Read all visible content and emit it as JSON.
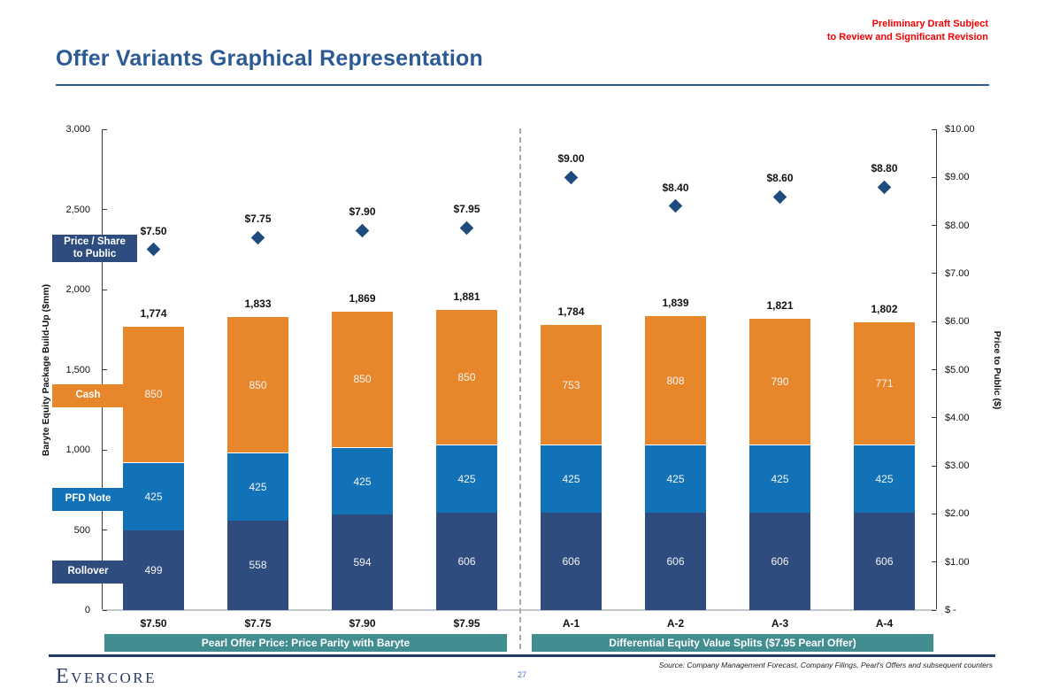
{
  "slide": {
    "disclaimer": [
      "Preliminary Draft Subject",
      "to Review and Significant Revision"
    ],
    "title": "Offer Variants Graphical Representation",
    "page_number": "27",
    "brand": "Evercore",
    "source": "Source: Company Management Forecast, Company Filings, Pearl's Offers and subsequent counters"
  },
  "colors": {
    "title_navy": "#2b5a94",
    "disclaimer_red": "#f40000",
    "footer_navy": "#1f3864",
    "teal": "#418d8f",
    "rollover_navy": "#2e4c7e",
    "pfd_blue": "#1272b7",
    "cash_orange": "#e8862c",
    "marker_navy": "#1f4c7e"
  },
  "chart_data": {
    "type": "bar",
    "stacked": true,
    "categories": [
      "$7.50",
      "$7.75",
      "$7.90",
      "$7.95",
      "A-1",
      "A-2",
      "A-3",
      "A-4"
    ],
    "series": [
      {
        "name": "Rollover",
        "color": "#2e4c7e",
        "values": [
          499,
          558,
          594,
          606,
          606,
          606,
          606,
          606
        ]
      },
      {
        "name": "PFD Note",
        "color": "#1272b7",
        "values": [
          425,
          425,
          425,
          425,
          425,
          425,
          425,
          425
        ]
      },
      {
        "name": "Cash",
        "color": "#e8862c",
        "values": [
          850,
          850,
          850,
          850,
          753,
          808,
          790,
          771
        ]
      }
    ],
    "totals": [
      1774,
      1833,
      1869,
      1881,
      1784,
      1839,
      1821,
      1802
    ],
    "total_labels": [
      "1,774",
      "1,833",
      "1,869",
      "1,881",
      "1,784",
      "1,839",
      "1,821",
      "1,802"
    ],
    "markers": {
      "name": "Price / Share to Public",
      "color": "#1f4c7e",
      "values": [
        7.5,
        7.75,
        7.9,
        7.95,
        9.0,
        8.4,
        8.6,
        8.8
      ],
      "labels": [
        "$7.50",
        "$7.75",
        "$7.90",
        "$7.95",
        "$9.00",
        "$8.40",
        "$8.60",
        "$8.80"
      ]
    },
    "left_axis": {
      "label": "Baryte Equity Package Build-Up ($mm)",
      "min": 0,
      "max": 3000,
      "ticks": [
        {
          "v": 3000,
          "t": "3,000"
        },
        {
          "v": 2500,
          "t": "2,500"
        },
        {
          "v": 2000,
          "t": "2,000"
        },
        {
          "v": 1500,
          "t": "1,500"
        },
        {
          "v": 1000,
          "t": "1,000"
        },
        {
          "v": 500,
          "t": "500"
        },
        {
          "v": 0,
          "t": "0"
        }
      ]
    },
    "right_axis": {
      "label": "Price to Public ($)",
      "min": 0,
      "max": 10,
      "ticks": [
        {
          "v": 10,
          "t": "$10.00"
        },
        {
          "v": 9,
          "t": "$9.00"
        },
        {
          "v": 8,
          "t": "$8.00"
        },
        {
          "v": 7,
          "t": "$7.00"
        },
        {
          "v": 6,
          "t": "$6.00"
        },
        {
          "v": 5,
          "t": "$5.00"
        },
        {
          "v": 4,
          "t": "$4.00"
        },
        {
          "v": 3,
          "t": "$3.00"
        },
        {
          "v": 2,
          "t": "$2.00"
        },
        {
          "v": 1,
          "t": "$1.00"
        },
        {
          "v": 0,
          "t": "$ -"
        }
      ]
    },
    "legend_callouts": [
      {
        "lines": [
          "Price / Share",
          "to Public"
        ],
        "color": "#2e4c7e",
        "center_mm": 2255,
        "wide": true
      },
      {
        "lines": [
          "Cash"
        ],
        "color": "#e8862c",
        "center_mm": 1337
      },
      {
        "lines": [
          "PFD Note"
        ],
        "color": "#1272b7",
        "center_mm": 690
      },
      {
        "lines": [
          "Rollover"
        ],
        "color": "#2e4c7e",
        "center_mm": 238
      }
    ],
    "groups": [
      {
        "label": "Pearl Offer Price: Price Parity with Baryte",
        "color": "#418d8f",
        "from": 0,
        "to": 3
      },
      {
        "label": "Differential Equity Value Splits ($7.95 Pearl Offer)",
        "color": "#418d8f",
        "from": 4,
        "to": 7
      }
    ]
  }
}
